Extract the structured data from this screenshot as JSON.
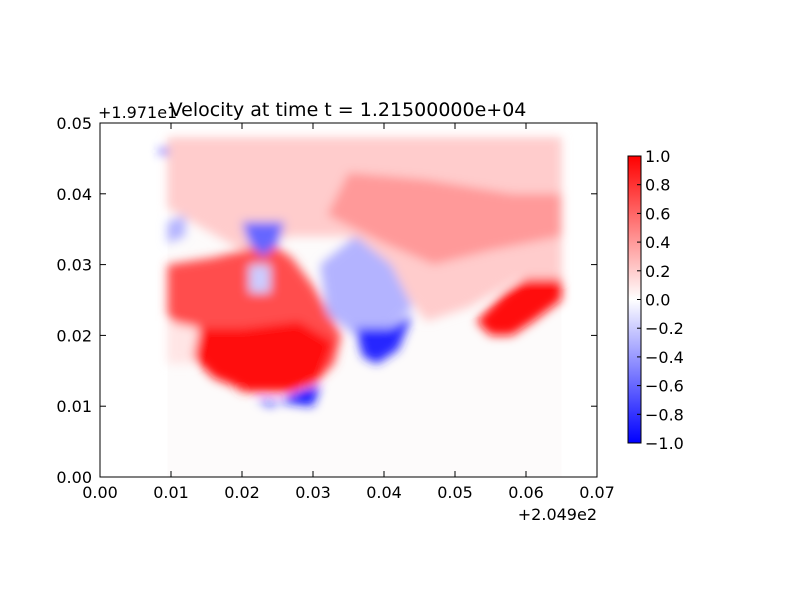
{
  "chart_data": {
    "type": "heatmap",
    "title": "Velocity at time t = 1.21500000e+04",
    "xlabel": "",
    "ylabel": "",
    "x_offset_label": "+2.049e2",
    "y_offset_label": "+1.971e1",
    "xlim": [
      0.0,
      0.07
    ],
    "ylim": [
      0.0,
      0.05
    ],
    "x_ticks": [
      "0.00",
      "0.01",
      "0.02",
      "0.03",
      "0.04",
      "0.05",
      "0.06",
      "0.07"
    ],
    "y_ticks": [
      "0.00",
      "0.01",
      "0.02",
      "0.03",
      "0.04",
      "0.05"
    ],
    "colormap": "bwr",
    "colors": {
      "low": "#0000ff",
      "mid": "#ffffff",
      "high": "#ff0000"
    },
    "clim": [
      -1.0,
      1.0
    ],
    "colorbar_ticks": [
      "−1.0",
      "−0.8",
      "−0.6",
      "−0.4",
      "−0.2",
      "0.0",
      "0.2",
      "0.4",
      "0.6",
      "0.8",
      "1.0"
    ],
    "grid": false,
    "field_extent": {
      "x": [
        0.0095,
        0.065
      ],
      "y": [
        0.0,
        0.048
      ]
    },
    "regions": [
      {
        "shape": "poly",
        "value": 0.2,
        "points": [
          [
            0.0095,
            0.048
          ],
          [
            0.065,
            0.048
          ],
          [
            0.065,
            0.028
          ],
          [
            0.059,
            0.028
          ],
          [
            0.052,
            0.024
          ],
          [
            0.046,
            0.022
          ],
          [
            0.042,
            0.027
          ],
          [
            0.035,
            0.034
          ],
          [
            0.027,
            0.034
          ],
          [
            0.02,
            0.032
          ],
          [
            0.013,
            0.036
          ],
          [
            0.0095,
            0.038
          ]
        ]
      },
      {
        "shape": "poly",
        "value": 0.4,
        "points": [
          [
            0.035,
            0.043
          ],
          [
            0.046,
            0.042
          ],
          [
            0.058,
            0.04
          ],
          [
            0.065,
            0.04
          ],
          [
            0.065,
            0.034
          ],
          [
            0.055,
            0.032
          ],
          [
            0.047,
            0.03
          ],
          [
            0.04,
            0.033
          ],
          [
            0.032,
            0.037
          ]
        ]
      },
      {
        "shape": "poly",
        "value": 0.7,
        "points": [
          [
            0.0095,
            0.03
          ],
          [
            0.016,
            0.031
          ],
          [
            0.024,
            0.033
          ],
          [
            0.027,
            0.031
          ],
          [
            0.03,
            0.027
          ],
          [
            0.034,
            0.02
          ],
          [
            0.033,
            0.016
          ],
          [
            0.03,
            0.013
          ],
          [
            0.026,
            0.012
          ],
          [
            0.02,
            0.012
          ],
          [
            0.016,
            0.015
          ],
          [
            0.012,
            0.019
          ],
          [
            0.0095,
            0.023
          ]
        ]
      },
      {
        "shape": "poly",
        "value": 0.95,
        "points": [
          [
            0.012,
            0.021
          ],
          [
            0.02,
            0.021
          ],
          [
            0.028,
            0.022
          ],
          [
            0.033,
            0.019
          ],
          [
            0.031,
            0.014
          ],
          [
            0.027,
            0.012
          ],
          [
            0.021,
            0.012
          ],
          [
            0.016,
            0.014
          ],
          [
            0.013,
            0.017
          ]
        ]
      },
      {
        "shape": "poly",
        "value": 0.95,
        "points": [
          [
            0.053,
            0.022
          ],
          [
            0.057,
            0.026
          ],
          [
            0.06,
            0.028
          ],
          [
            0.065,
            0.028
          ],
          [
            0.065,
            0.025
          ],
          [
            0.061,
            0.022
          ],
          [
            0.058,
            0.02
          ],
          [
            0.055,
            0.02
          ]
        ]
      },
      {
        "shape": "poly",
        "value": -0.3,
        "points": [
          [
            0.031,
            0.03
          ],
          [
            0.036,
            0.034
          ],
          [
            0.041,
            0.03
          ],
          [
            0.044,
            0.024
          ],
          [
            0.041,
            0.021
          ],
          [
            0.036,
            0.02
          ],
          [
            0.032,
            0.023
          ]
        ]
      },
      {
        "shape": "poly",
        "value": -0.85,
        "points": [
          [
            0.036,
            0.021
          ],
          [
            0.041,
            0.021
          ],
          [
            0.044,
            0.023
          ],
          [
            0.042,
            0.018
          ],
          [
            0.039,
            0.016
          ],
          [
            0.037,
            0.017
          ]
        ]
      },
      {
        "shape": "poly",
        "value": -0.9,
        "points": [
          [
            0.022,
            0.011
          ],
          [
            0.03,
            0.01
          ],
          [
            0.031,
            0.013
          ],
          [
            0.028,
            0.012
          ],
          [
            0.024,
            0.01
          ]
        ]
      },
      {
        "shape": "poly",
        "value": -0.6,
        "points": [
          [
            0.02,
            0.036
          ],
          [
            0.026,
            0.036
          ],
          [
            0.025,
            0.033
          ],
          [
            0.023,
            0.031
          ],
          [
            0.021,
            0.033
          ]
        ]
      },
      {
        "shape": "poly",
        "value": -0.3,
        "points": [
          [
            0.0095,
            0.036
          ],
          [
            0.012,
            0.037
          ],
          [
            0.012,
            0.034
          ],
          [
            0.0095,
            0.033
          ]
        ]
      },
      {
        "shape": "poly",
        "value": -0.2,
        "points": [
          [
            0.021,
            0.03
          ],
          [
            0.024,
            0.03
          ],
          [
            0.024,
            0.026
          ],
          [
            0.021,
            0.026
          ]
        ]
      },
      {
        "shape": "poly",
        "value": 0.1,
        "points": [
          [
            0.0095,
            0.016
          ],
          [
            0.013,
            0.016
          ],
          [
            0.014,
            0.021
          ],
          [
            0.0095,
            0.022
          ]
        ]
      },
      {
        "shape": "poly",
        "value": -0.8,
        "points": [
          [
            0.0085,
            0.0465
          ],
          [
            0.0095,
            0.0465
          ],
          [
            0.0095,
            0.0455
          ],
          [
            0.0085,
            0.0455
          ]
        ]
      }
    ]
  }
}
